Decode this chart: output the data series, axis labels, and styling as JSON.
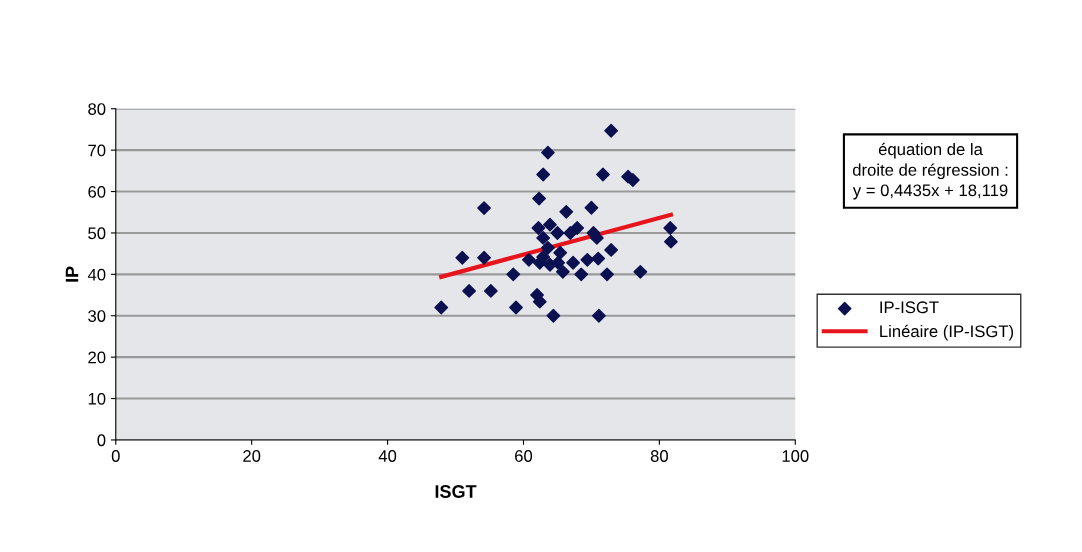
{
  "chart_data": {
    "type": "scatter",
    "xlabel": "ISGT",
    "ylabel": "IP",
    "xlim": [
      0,
      100
    ],
    "ylim": [
      0,
      80
    ],
    "xticks": [
      0,
      20,
      40,
      60,
      80,
      100
    ],
    "yticks": [
      0,
      10,
      20,
      30,
      40,
      50,
      60,
      70,
      80
    ],
    "grid": "y",
    "legend": "right",
    "annotations": [
      "équation de la\ndroite de régression :\ny = 0,4435x + 18,119"
    ],
    "series": [
      {
        "name": "IP-ISGT",
        "marker": "diamond",
        "color": "#0b1050",
        "x": [
          47.9,
          51,
          52,
          54.2,
          54.2,
          55.2,
          58.5,
          58.9,
          60.8,
          62,
          62.4,
          62.3,
          62.9,
          63.6,
          62.2,
          63.9,
          62.9,
          65,
          66.3,
          67.9,
          66.9,
          70,
          70.3,
          70.8,
          71.7,
          72.9,
          75.4,
          76.1,
          72.9,
          72.3,
          71,
          77.2,
          81.6,
          81.7,
          64.4,
          71.1,
          62.4,
          62.9,
          63.9,
          65.4,
          65.1,
          65.8,
          67.3,
          68.5,
          69.4,
          63.6
        ],
        "values": [
          32,
          44,
          36,
          44,
          56,
          36,
          40,
          32,
          43.5,
          35,
          33.4,
          58.3,
          64.1,
          69.4,
          51.2,
          52,
          48.8,
          50,
          55.1,
          51.2,
          50,
          56.1,
          50,
          48.8,
          64.1,
          74.7,
          63.6,
          62.8,
          45.9,
          40,
          43.8,
          40.6,
          51.2,
          47.9,
          30,
          30,
          42.8,
          44.2,
          42.3,
          45.2,
          42.8,
          40.6,
          42.8,
          40,
          43.5,
          46.4
        ]
      },
      {
        "name": "Linéaire (IP-ISGT)",
        "type": "line",
        "marker": "none",
        "color": "#e8141c",
        "x": [
          47.9,
          81.7
        ],
        "values": [
          39.4,
          54.4
        ]
      }
    ]
  }
}
